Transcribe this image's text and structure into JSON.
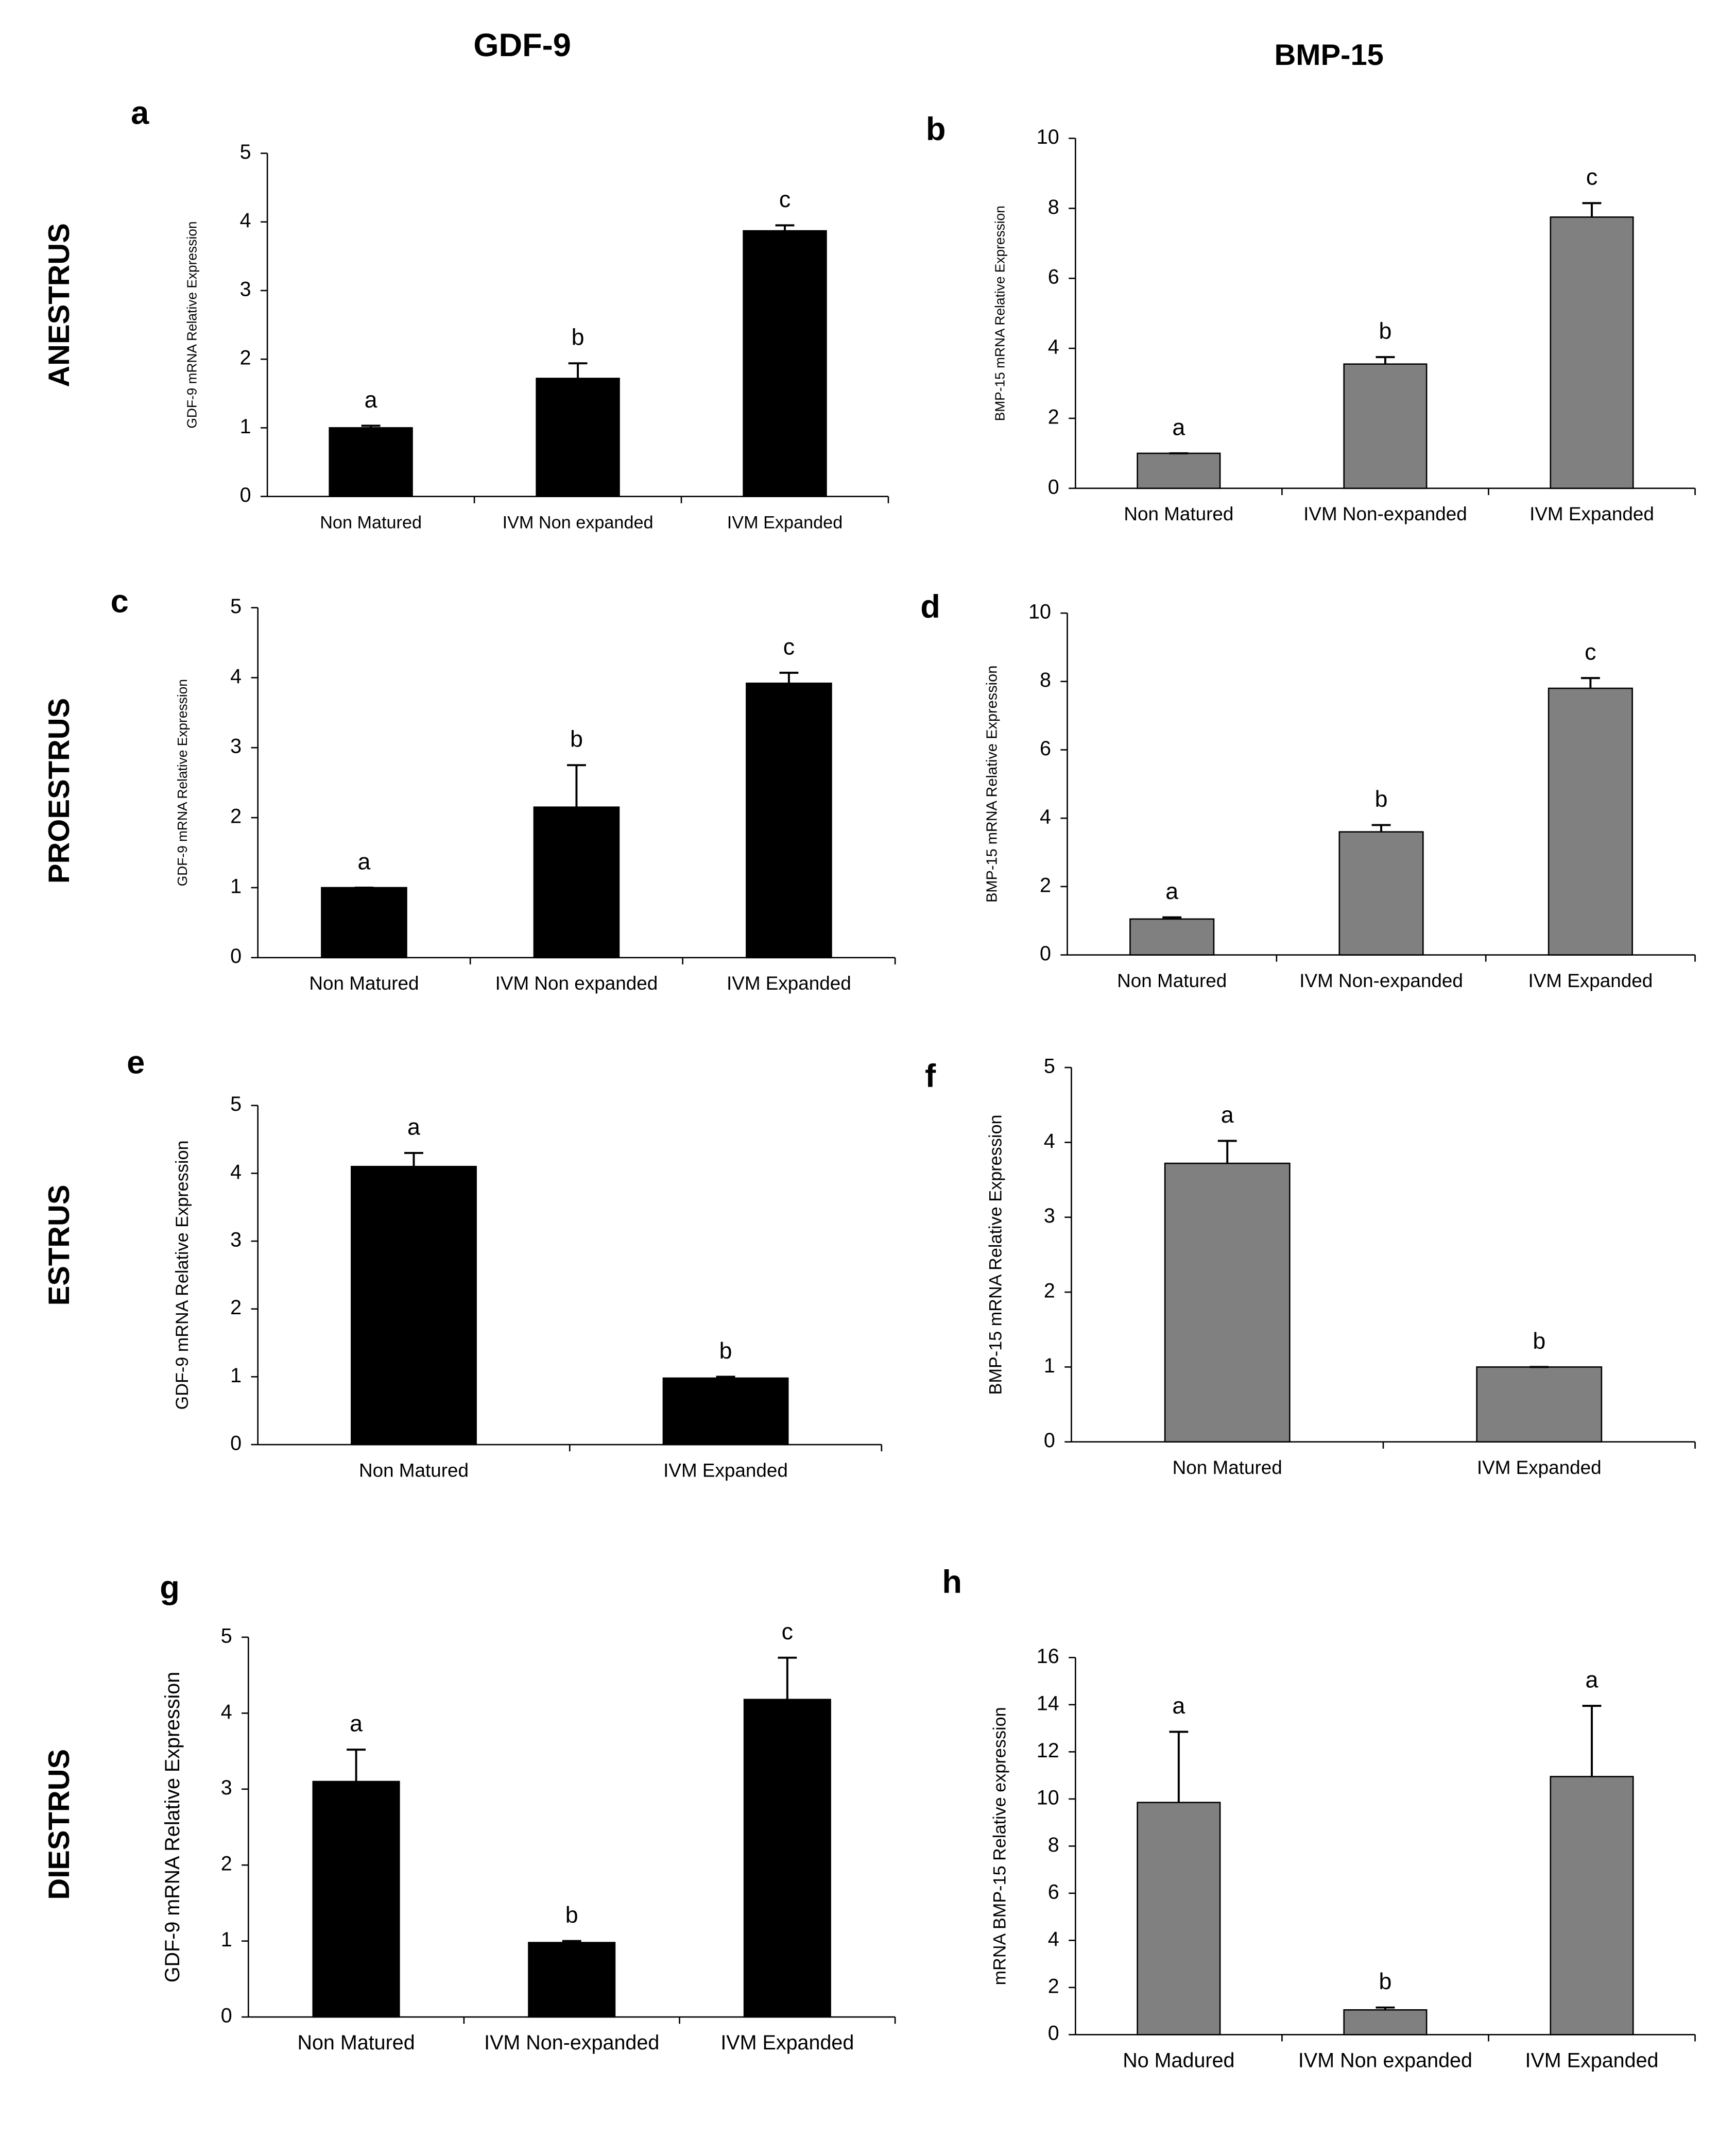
{
  "column_titles": [
    "GDF-9",
    "BMP-15"
  ],
  "row_labels": [
    "ANESTRUS",
    "PROESTRUS",
    "ESTRUS",
    "DIESTRUS"
  ],
  "chart_data": [
    {
      "type": "bar",
      "panel": "a",
      "ylabel": "GDF-9 mRNA Relative Expression",
      "color": "#000000",
      "categories": [
        "Non Matured",
        "IVM Non expanded",
        "IVM Expanded"
      ],
      "values": [
        1.0,
        1.72,
        3.87
      ],
      "errors": [
        0.03,
        0.22,
        0.08
      ],
      "annotations": [
        "a",
        "b",
        "c"
      ],
      "ylim": [
        0,
        5
      ],
      "yticks": [
        0,
        1,
        2,
        3,
        4,
        5
      ]
    },
    {
      "type": "bar",
      "panel": "b",
      "ylabel": "BMP-15 mRNA Relative Expression",
      "color": "#808080",
      "categories": [
        "Non Matured",
        "IVM Non-expanded",
        "IVM Expanded"
      ],
      "values": [
        1.0,
        3.55,
        7.75
      ],
      "errors": [
        0.0,
        0.2,
        0.4
      ],
      "annotations": [
        "a",
        "b",
        "c"
      ],
      "ylim": [
        0,
        10
      ],
      "yticks": [
        0,
        2,
        4,
        6,
        8,
        10
      ]
    },
    {
      "type": "bar",
      "panel": "c",
      "ylabel": "GDF-9 mRNA Relative Expression",
      "color": "#000000",
      "categories": [
        "Non Matured",
        "IVM Non expanded",
        "IVM Expanded"
      ],
      "values": [
        1.0,
        2.15,
        3.92
      ],
      "errors": [
        0.0,
        0.6,
        0.15
      ],
      "annotations": [
        "a",
        "b",
        "c"
      ],
      "ylim": [
        0,
        5
      ],
      "yticks": [
        0,
        1,
        2,
        3,
        4,
        5
      ]
    },
    {
      "type": "bar",
      "panel": "d",
      "ylabel": "BMP-15 mRNA Relative Expression",
      "color": "#808080",
      "categories": [
        "Non Matured",
        "IVM Non-expanded",
        "IVM Expanded"
      ],
      "values": [
        1.05,
        3.6,
        7.8
      ],
      "errors": [
        0.05,
        0.2,
        0.3
      ],
      "annotations": [
        "a",
        "b",
        "c"
      ],
      "ylim": [
        0,
        10
      ],
      "yticks": [
        0,
        2,
        4,
        6,
        8,
        10
      ]
    },
    {
      "type": "bar",
      "panel": "e",
      "ylabel": "GDF-9 mRNA Relative Expression",
      "color": "#000000",
      "categories": [
        "Non Matured",
        "IVM Expanded"
      ],
      "values": [
        4.1,
        0.98
      ],
      "errors": [
        0.2,
        0.02
      ],
      "annotations": [
        "a",
        "b"
      ],
      "ylim": [
        0,
        5
      ],
      "yticks": [
        0,
        1,
        2,
        3,
        4,
        5
      ]
    },
    {
      "type": "bar",
      "panel": "f",
      "ylabel": "BMP-15 mRNA Relative Expression",
      "color": "#808080",
      "categories": [
        "Non Matured",
        "IVM Expanded"
      ],
      "values": [
        3.72,
        1.0
      ],
      "errors": [
        0.3,
        0.0
      ],
      "annotations": [
        "a",
        "b"
      ],
      "ylim": [
        0,
        5
      ],
      "yticks": [
        0,
        1,
        2,
        3,
        4,
        5
      ]
    },
    {
      "type": "bar",
      "panel": "g",
      "ylabel": "GDF-9 mRNA Relative Expression",
      "color": "#000000",
      "categories": [
        "Non Matured",
        "IVM Non-expanded",
        "IVM Expanded"
      ],
      "values": [
        3.1,
        0.98,
        4.18
      ],
      "errors": [
        0.42,
        0.02,
        0.55
      ],
      "annotations": [
        "a",
        "b",
        "c"
      ],
      "ylim": [
        0,
        5
      ],
      "yticks": [
        0,
        1,
        2,
        3,
        4,
        5
      ]
    },
    {
      "type": "bar",
      "panel": "h",
      "ylabel": "mRNA BMP-15 Relative expression",
      "color": "#808080",
      "categories": [
        "No Madured",
        "IVM Non expanded",
        "IVM Expanded"
      ],
      "values": [
        9.85,
        1.05,
        10.95
      ],
      "errors": [
        3.0,
        0.1,
        3.0
      ],
      "annotations": [
        "a",
        "b",
        "a"
      ],
      "ylim": [
        0,
        16
      ],
      "yticks": [
        0,
        2,
        4,
        6,
        8,
        10,
        12,
        14,
        16
      ]
    }
  ]
}
